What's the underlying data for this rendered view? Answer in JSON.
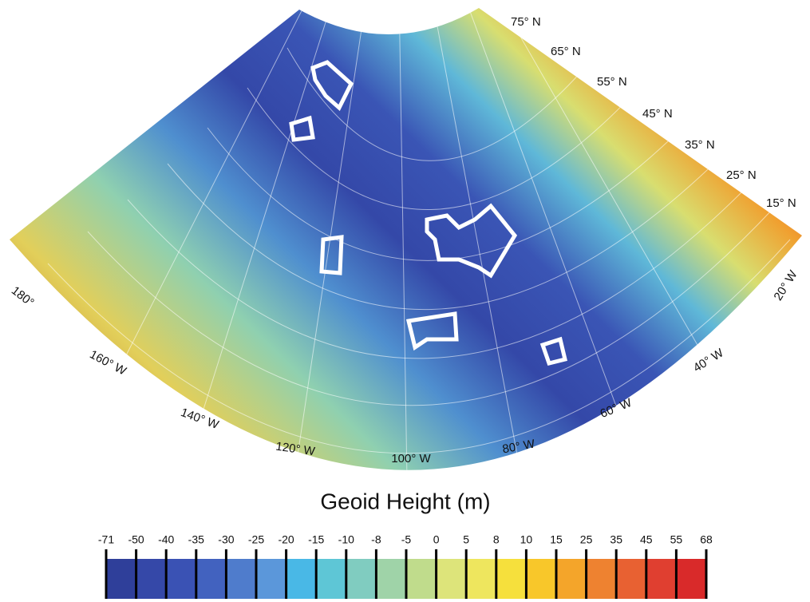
{
  "map": {
    "latitude_labels": [
      "75° N",
      "65° N",
      "55° N",
      "45° N",
      "35° N",
      "25° N",
      "15° N"
    ],
    "longitude_labels": [
      "180°",
      "160° W",
      "140° W",
      "120° W",
      "100° W",
      "80° W",
      "60° W",
      "40° W",
      "20° W"
    ]
  },
  "colorbar": {
    "title": "Geoid Height (m)",
    "ticks": [
      -71,
      -50,
      -40,
      -35,
      -30,
      -25,
      -20,
      -15,
      -10,
      -8,
      -5,
      0,
      5,
      8,
      10,
      15,
      25,
      35,
      45,
      55,
      68
    ],
    "colors": [
      "#2f3f9a",
      "#3548a8",
      "#3a52b4",
      "#4262bf",
      "#4f7ccc",
      "#5b97da",
      "#49b8e6",
      "#5ec6d6",
      "#80ccc0",
      "#9fd3a8",
      "#c0dc8c",
      "#dde47a",
      "#eee65e",
      "#f6e03c",
      "#f8c72a",
      "#f4a52a",
      "#ee8230",
      "#e86132",
      "#e03f30",
      "#d92a2a"
    ]
  }
}
